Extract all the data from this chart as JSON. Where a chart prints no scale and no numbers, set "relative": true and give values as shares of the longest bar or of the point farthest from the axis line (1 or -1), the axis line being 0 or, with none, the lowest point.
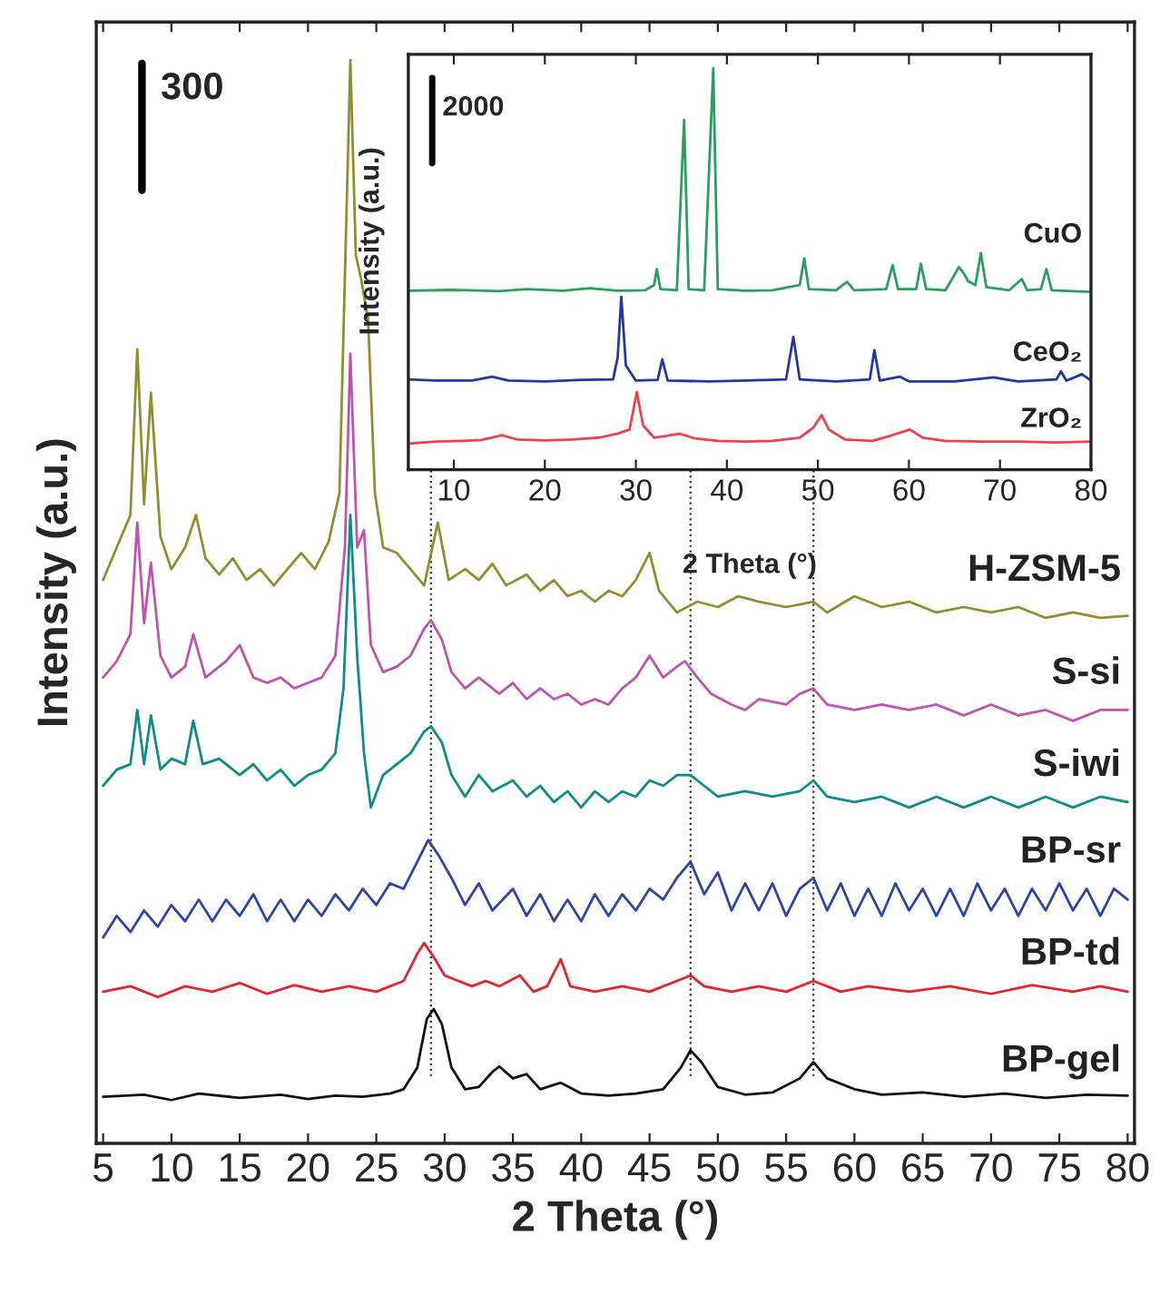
{
  "chart_data": [
    {
      "type": "line",
      "xlabel": "2 Theta (°)",
      "ylabel": "Intensity (a.u.)",
      "relative": true,
      "xlim": [
        4.5,
        80.5
      ],
      "xticks": [
        5,
        10,
        15,
        20,
        25,
        30,
        35,
        40,
        45,
        50,
        55,
        60,
        65,
        70,
        75,
        80
      ],
      "tick_labels": "x",
      "grid": false,
      "legend": false,
      "line_style": "solid",
      "marker": "none",
      "annotations": [
        "300"
      ],
      "ref_lines": [
        {
          "axis": "x",
          "value": 29,
          "label": null,
          "color": "#333333",
          "line_style": "dotted"
        },
        {
          "axis": "x",
          "value": 48,
          "label": null,
          "color": "#333333",
          "line_style": "dotted"
        },
        {
          "axis": "x",
          "value": 57,
          "label": null,
          "color": "#333333",
          "line_style": "dotted"
        }
      ],
      "series": [
        {
          "name": "H-ZSM-5",
          "color": "#8f8f2f",
          "x": [
            5,
            6,
            7,
            7.5,
            8,
            8.5,
            9.2,
            10,
            11,
            11.8,
            12.5,
            13.5,
            14.5,
            15.5,
            16.5,
            17.5,
            18.5,
            19.5,
            20.5,
            21.5,
            22.3,
            22.8,
            23.1,
            23.5,
            23.9,
            24.4,
            24.9,
            25.5,
            26.5,
            27.5,
            28.5,
            29.5,
            30.3,
            31.5,
            32.5,
            33.5,
            34.5,
            36,
            37,
            38,
            39,
            40,
            41,
            42,
            43,
            44,
            45,
            45.7,
            47,
            48.5,
            50,
            51.5,
            53,
            55,
            57,
            58,
            60,
            62,
            64,
            66,
            68,
            70,
            72,
            74,
            76,
            78,
            80
          ],
          "values": [
            0.52,
            0.55,
            0.58,
            0.733,
            0.59,
            0.693,
            0.56,
            0.53,
            0.55,
            0.58,
            0.54,
            0.525,
            0.54,
            0.52,
            0.53,
            0.515,
            0.53,
            0.545,
            0.53,
            0.555,
            0.6,
            0.85,
            1.0,
            0.82,
            0.797,
            0.76,
            0.6,
            0.55,
            0.545,
            0.53,
            0.515,
            0.573,
            0.52,
            0.53,
            0.52,
            0.535,
            0.515,
            0.525,
            0.51,
            0.52,
            0.505,
            0.51,
            0.5,
            0.51,
            0.505,
            0.52,
            0.545,
            0.51,
            0.49,
            0.5,
            0.495,
            0.505,
            0.5,
            0.495,
            0.5,
            0.49,
            0.505,
            0.495,
            0.5,
            0.49,
            0.495,
            0.49,
            0.495,
            0.485,
            0.49,
            0.485,
            0.487
          ]
        },
        {
          "name": "S-si",
          "color": "#c052b0",
          "x": [
            5,
            6,
            7,
            7.5,
            8,
            8.5,
            9.2,
            10,
            11,
            11.6,
            12.5,
            14,
            15,
            16,
            17,
            18,
            19,
            20,
            21,
            22,
            22.7,
            23.1,
            23.6,
            24.1,
            24.6,
            25.5,
            26.5,
            27.5,
            28.5,
            29,
            29.8,
            30.5,
            31.5,
            32.5,
            34,
            35,
            36,
            37,
            38,
            39,
            40,
            41,
            42,
            43,
            44,
            45,
            46,
            47,
            47.6,
            48.5,
            49.5,
            51,
            52,
            53,
            55,
            56,
            57,
            58,
            60,
            62,
            64,
            66,
            68,
            70,
            72,
            74,
            76,
            78,
            80
          ],
          "values": [
            0.43,
            0.445,
            0.47,
            0.573,
            0.48,
            0.536,
            0.45,
            0.43,
            0.44,
            0.47,
            0.43,
            0.445,
            0.46,
            0.43,
            0.425,
            0.43,
            0.42,
            0.425,
            0.43,
            0.45,
            0.55,
            0.729,
            0.55,
            0.566,
            0.46,
            0.435,
            0.44,
            0.45,
            0.475,
            0.483,
            0.465,
            0.435,
            0.42,
            0.43,
            0.415,
            0.425,
            0.41,
            0.42,
            0.41,
            0.415,
            0.405,
            0.41,
            0.405,
            0.42,
            0.43,
            0.45,
            0.43,
            0.44,
            0.445,
            0.43,
            0.415,
            0.405,
            0.4,
            0.41,
            0.405,
            0.415,
            0.42,
            0.405,
            0.4,
            0.405,
            0.4,
            0.405,
            0.395,
            0.405,
            0.395,
            0.4,
            0.39,
            0.4,
            0.4
          ]
        },
        {
          "name": "S-iwi",
          "color": "#0d8c8c",
          "x": [
            5,
            6,
            7,
            7.5,
            8,
            8.5,
            9.2,
            10,
            11,
            11.6,
            12.3,
            13.5,
            15,
            16,
            17,
            18,
            19,
            20,
            21,
            22,
            22.6,
            23.1,
            23.6,
            24.1,
            24.6,
            25.5,
            26.5,
            27.5,
            28.5,
            29,
            29.8,
            30.5,
            31.5,
            32.5,
            33.5,
            35,
            36,
            37,
            38,
            39,
            40,
            41,
            42,
            43,
            44,
            45,
            46,
            47,
            48,
            49,
            50,
            52,
            54,
            56,
            57,
            58,
            60,
            62,
            64,
            66,
            68,
            70,
            72,
            74,
            76,
            78,
            80
          ],
          "values": [
            0.33,
            0.345,
            0.35,
            0.4,
            0.35,
            0.395,
            0.345,
            0.355,
            0.35,
            0.39,
            0.35,
            0.355,
            0.34,
            0.35,
            0.335,
            0.345,
            0.33,
            0.34,
            0.345,
            0.36,
            0.42,
            0.58,
            0.45,
            0.36,
            0.31,
            0.34,
            0.35,
            0.36,
            0.38,
            0.385,
            0.37,
            0.34,
            0.32,
            0.34,
            0.325,
            0.335,
            0.32,
            0.33,
            0.315,
            0.325,
            0.31,
            0.325,
            0.315,
            0.325,
            0.32,
            0.335,
            0.33,
            0.34,
            0.34,
            0.33,
            0.32,
            0.325,
            0.32,
            0.325,
            0.335,
            0.32,
            0.315,
            0.32,
            0.31,
            0.32,
            0.31,
            0.32,
            0.31,
            0.32,
            0.31,
            0.32,
            0.315
          ]
        },
        {
          "name": "BP-sr",
          "color": "#2b45a8",
          "x": [
            5,
            6,
            7,
            8,
            9,
            10,
            11,
            12,
            13,
            14,
            15,
            16,
            17,
            18,
            19,
            20,
            21,
            22,
            23,
            24,
            25,
            26,
            27,
            28,
            28.8,
            29.6,
            30.5,
            31.5,
            32.5,
            33.5,
            35,
            36,
            37,
            38,
            39,
            40,
            41,
            42,
            43,
            44,
            45,
            46,
            47,
            48,
            49,
            50,
            51,
            52,
            53,
            54,
            55,
            56,
            57,
            58,
            59,
            60,
            61,
            62,
            63,
            64,
            65,
            66,
            67,
            68,
            69,
            70,
            71,
            72,
            73,
            74,
            75,
            76,
            77,
            78,
            79,
            80
          ],
          "values": [
            0.19,
            0.21,
            0.195,
            0.215,
            0.2,
            0.22,
            0.205,
            0.225,
            0.205,
            0.225,
            0.21,
            0.23,
            0.205,
            0.225,
            0.205,
            0.225,
            0.21,
            0.23,
            0.215,
            0.235,
            0.22,
            0.24,
            0.235,
            0.26,
            0.28,
            0.265,
            0.245,
            0.22,
            0.24,
            0.215,
            0.235,
            0.21,
            0.23,
            0.205,
            0.225,
            0.205,
            0.23,
            0.21,
            0.23,
            0.215,
            0.235,
            0.225,
            0.245,
            0.26,
            0.23,
            0.25,
            0.215,
            0.24,
            0.215,
            0.24,
            0.21,
            0.235,
            0.245,
            0.215,
            0.24,
            0.21,
            0.235,
            0.21,
            0.24,
            0.215,
            0.235,
            0.21,
            0.235,
            0.21,
            0.24,
            0.215,
            0.235,
            0.21,
            0.235,
            0.215,
            0.24,
            0.215,
            0.235,
            0.21,
            0.235,
            0.225
          ]
        },
        {
          "name": "BP-td",
          "color": "#e8222a",
          "x": [
            5,
            7,
            9,
            11,
            13,
            15,
            17,
            19,
            21,
            23,
            25,
            27,
            28,
            28.5,
            29.3,
            30,
            31,
            32,
            33,
            34,
            35.5,
            36.5,
            37.5,
            38.5,
            39.2,
            41,
            43,
            45,
            47,
            48,
            49,
            51,
            53,
            55,
            57,
            59,
            61,
            64,
            67,
            70,
            73,
            76,
            78,
            80
          ],
          "values": [
            0.14,
            0.145,
            0.135,
            0.145,
            0.14,
            0.148,
            0.138,
            0.146,
            0.14,
            0.145,
            0.14,
            0.15,
            0.175,
            0.185,
            0.17,
            0.155,
            0.15,
            0.145,
            0.15,
            0.145,
            0.155,
            0.14,
            0.145,
            0.17,
            0.145,
            0.14,
            0.145,
            0.14,
            0.15,
            0.155,
            0.145,
            0.14,
            0.145,
            0.14,
            0.15,
            0.14,
            0.145,
            0.14,
            0.145,
            0.138,
            0.146,
            0.14,
            0.145,
            0.14
          ]
        },
        {
          "name": "BP-gel",
          "color": "#111111",
          "x": [
            5,
            8,
            10,
            12,
            15,
            18,
            20,
            22,
            24,
            26,
            27,
            28,
            28.7,
            29.2,
            29.8,
            30.5,
            31.5,
            32.5,
            33.5,
            34,
            35,
            36,
            37,
            38.5,
            40,
            42,
            44,
            46,
            47.3,
            48,
            48.8,
            50,
            52,
            54,
            56,
            57,
            58,
            60,
            62,
            65,
            68,
            71,
            74,
            77,
            80
          ],
          "values": [
            0.043,
            0.045,
            0.04,
            0.046,
            0.042,
            0.045,
            0.041,
            0.044,
            0.043,
            0.046,
            0.05,
            0.07,
            0.115,
            0.124,
            0.11,
            0.07,
            0.05,
            0.052,
            0.066,
            0.071,
            0.06,
            0.064,
            0.05,
            0.056,
            0.046,
            0.044,
            0.046,
            0.05,
            0.07,
            0.086,
            0.075,
            0.052,
            0.045,
            0.047,
            0.06,
            0.075,
            0.06,
            0.05,
            0.045,
            0.047,
            0.043,
            0.046,
            0.042,
            0.045,
            0.044
          ]
        }
      ]
    },
    {
      "type": "line",
      "xlabel": "2 Theta (°)",
      "ylabel": "Intensity (a.u.)",
      "relative": true,
      "xlim": [
        5,
        80
      ],
      "xticks": [
        10,
        20,
        30,
        40,
        50,
        60,
        70,
        80
      ],
      "tick_labels": "x",
      "grid": false,
      "legend": false,
      "line_style": "solid",
      "marker": "none",
      "annotations": [
        "2000"
      ],
      "series": [
        {
          "name": "CuO",
          "color": "#2a9d60",
          "x": [
            5,
            10,
            15,
            18,
            22,
            25,
            28,
            31,
            32,
            32.3,
            32.7,
            34.5,
            35.3,
            35.8,
            37.5,
            38.5,
            39,
            42,
            45,
            48,
            48.5,
            49,
            52,
            53.2,
            54,
            57.5,
            58.2,
            58.8,
            60.8,
            61.3,
            61.9,
            64,
            65.5,
            66,
            66.5,
            67.3,
            67.9,
            68.5,
            71,
            72.4,
            73,
            74.5,
            75.1,
            75.7,
            78,
            80
          ],
          "values": [
            0.446,
            0.448,
            0.445,
            0.45,
            0.446,
            0.452,
            0.446,
            0.447,
            0.46,
            0.5,
            0.45,
            0.447,
            0.872,
            0.45,
            0.447,
            1.0,
            0.45,
            0.446,
            0.447,
            0.46,
            0.527,
            0.45,
            0.447,
            0.468,
            0.447,
            0.45,
            0.51,
            0.45,
            0.45,
            0.513,
            0.45,
            0.447,
            0.505,
            0.49,
            0.47,
            0.46,
            0.54,
            0.455,
            0.447,
            0.475,
            0.447,
            0.45,
            0.5,
            0.447,
            0.445,
            0.443
          ]
        },
        {
          "name": "CeO₂",
          "color": "#2238a0",
          "x": [
            5,
            8,
            12,
            14.2,
            16,
            20,
            24,
            27.5,
            28,
            28.4,
            28.9,
            30,
            32.4,
            32.9,
            33.5,
            38,
            42,
            46.5,
            47.3,
            48,
            52,
            55.7,
            56.2,
            56.8,
            59,
            60,
            65,
            69.3,
            72,
            76.2,
            76.7,
            77.3,
            79,
            80
          ],
          "values": [
            0.225,
            0.222,
            0.222,
            0.232,
            0.222,
            0.22,
            0.224,
            0.225,
            0.28,
            0.431,
            0.26,
            0.222,
            0.224,
            0.275,
            0.222,
            0.22,
            0.222,
            0.225,
            0.331,
            0.225,
            0.22,
            0.225,
            0.298,
            0.222,
            0.232,
            0.22,
            0.22,
            0.23,
            0.22,
            0.225,
            0.245,
            0.222,
            0.238,
            0.222
          ]
        },
        {
          "name": "ZrO₂",
          "color": "#f04050",
          "x": [
            5,
            8,
            11,
            13,
            15.3,
            17,
            20,
            23,
            26,
            28,
            29.3,
            30.1,
            30.8,
            32,
            33.5,
            34.8,
            36.5,
            39,
            42,
            45,
            48,
            49.5,
            50.4,
            51.2,
            53,
            56,
            58,
            60.1,
            61.5,
            64,
            68,
            72,
            76,
            80
          ],
          "values": [
            0.065,
            0.07,
            0.072,
            0.074,
            0.086,
            0.075,
            0.073,
            0.075,
            0.08,
            0.09,
            0.1,
            0.193,
            0.11,
            0.08,
            0.085,
            0.09,
            0.078,
            0.072,
            0.07,
            0.072,
            0.08,
            0.105,
            0.136,
            0.1,
            0.075,
            0.072,
            0.085,
            0.1,
            0.08,
            0.072,
            0.07,
            0.07,
            0.068,
            0.07
          ]
        }
      ]
    }
  ]
}
